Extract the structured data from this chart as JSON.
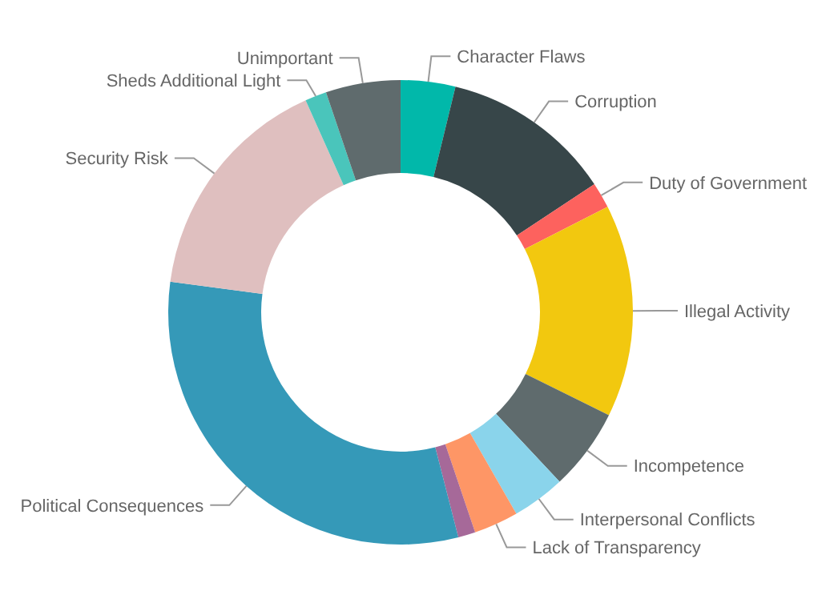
{
  "chart_data": {
    "type": "donut",
    "categories": [
      "Character Flaws",
      "Corruption",
      "Duty of Government",
      "Illegal Activity",
      "Incompetence",
      "Interpersonal Conflicts",
      "Lack of Transparency",
      null,
      "Political Consequences",
      "Security Risk",
      "Sheds Additional Light",
      "Unimportant"
    ],
    "values": [
      3.8,
      11.9,
      1.8,
      14.8,
      5.7,
      3.7,
      3.1,
      1.2,
      31.1,
      16.2,
      1.5,
      5.2
    ],
    "colors": [
      "#01b8aa",
      "#374649",
      "#fd625e",
      "#f2c80f",
      "#5f6b6d",
      "#8ad4eb",
      "#fe9666",
      "#a66999",
      "#3599b8",
      "#dfbfbf",
      "#4ac5bb",
      "#5f6b6d"
    ]
  }
}
